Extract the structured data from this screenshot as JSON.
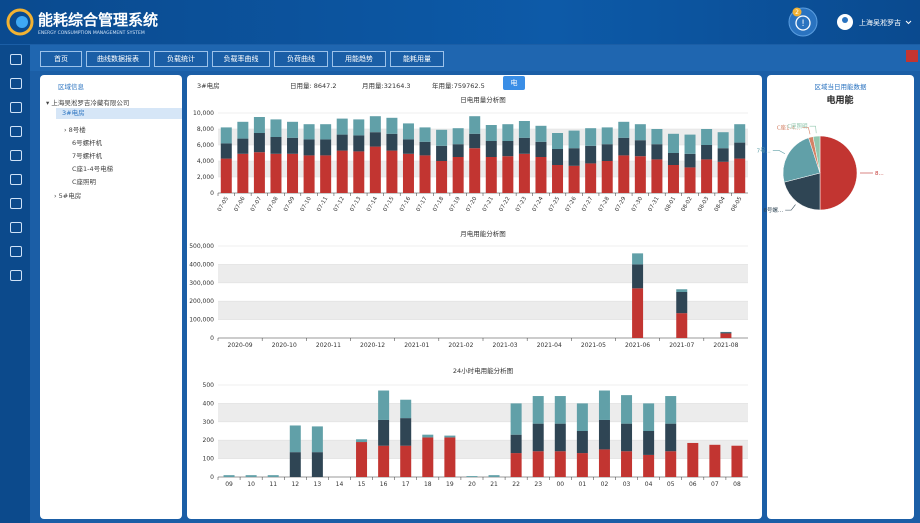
{
  "header": {
    "title": "能耗综合管理系统",
    "subtitle": "ENERGY CONSUMPTION MANAGEMENT SYSTEM",
    "badge": "2",
    "user": "上海吴淞罗吉"
  },
  "nav": [
    "首页",
    "曲线数据报表",
    "负载统计",
    "负载率曲线",
    "负荷曲线",
    "用能趋势",
    "能耗用量"
  ],
  "tree": {
    "title": "区域信息",
    "items": [
      "上海吴淞罗吉冷藏有限公司",
      "3#电房",
      "8号楼",
      "6号螺杆机",
      "7号螺杆机",
      "C座1-4号电梯",
      "C座照明",
      "5#电房"
    ]
  },
  "info": {
    "room": "3#电房",
    "day": "日用量: 8647.2",
    "month": "月用量:32164.3",
    "year": "年用量:759762.5",
    "button": "电"
  },
  "right_panel": {
    "title": "区域当日用能数据"
  },
  "chart_data": [
    {
      "type": "bar",
      "stacked": true,
      "title": "日电用量分析图",
      "grid": true,
      "categories": [
        "07-05",
        "07-06",
        "07-07",
        "07-08",
        "07-09",
        "07-10",
        "07-11",
        "07-12",
        "07-13",
        "07-14",
        "07-15",
        "07-16",
        "07-17",
        "07-18",
        "07-19",
        "07-20",
        "07-21",
        "07-22",
        "07-23",
        "07-24",
        "07-25",
        "07-26",
        "07-27",
        "07-28",
        "07-29",
        "07-30",
        "07-31",
        "08-01",
        "08-02",
        "08-03",
        "08-04",
        "08-05"
      ],
      "ylim": [
        0,
        10000
      ],
      "yticks": [
        0,
        {
          "value": 2000,
          "label": "2,000"
        },
        {
          "value": 4000,
          "label": "4,000"
        },
        {
          "value": 6000,
          "label": "6,000"
        },
        {
          "value": 8000,
          "label": "8,000"
        },
        {
          "value": 10000,
          "label": "10,000"
        }
      ],
      "series": [
        {
          "color": "#c23531",
          "values": [
            4300,
            4900,
            5100,
            4900,
            4900,
            4700,
            4700,
            5300,
            5200,
            5800,
            5300,
            4900,
            4700,
            4000,
            4500,
            5600,
            4500,
            4600,
            4900,
            4500,
            3500,
            3400,
            3700,
            4000,
            4700,
            4600,
            4200,
            3500,
            3200,
            4200,
            3900,
            4300
          ]
        },
        {
          "color": "#2f4554",
          "values": [
            1900,
            1900,
            2400,
            2100,
            2000,
            2000,
            2000,
            2000,
            2000,
            1800,
            2100,
            1800,
            1700,
            1900,
            1600,
            1800,
            2000,
            1900,
            2000,
            1900,
            2000,
            2200,
            2200,
            2100,
            2200,
            2000,
            1900,
            1500,
            1700,
            1800,
            1700,
            2000
          ]
        },
        {
          "color": "#61a0a8",
          "values": [
            2000,
            2100,
            2000,
            2200,
            2000,
            1900,
            1900,
            2000,
            2000,
            2000,
            2000,
            2000,
            1800,
            2000,
            2000,
            2200,
            2000,
            2100,
            2100,
            2000,
            2000,
            2200,
            2200,
            2100,
            2000,
            2000,
            1900,
            2400,
            2400,
            2000,
            2000,
            2300
          ]
        }
      ]
    },
    {
      "type": "bar",
      "stacked": true,
      "title": "月电用能分析图",
      "grid": true,
      "categories": [
        "2020-09",
        "2020-10",
        "2020-11",
        "2020-12",
        "2021-01",
        "2021-02",
        "2021-03",
        "2021-04",
        "2021-05",
        "2021-06",
        "2021-07",
        "2021-08"
      ],
      "ylim": [
        0,
        500000
      ],
      "yticks": [
        0,
        {
          "value": 100000,
          "label": "100,000"
        },
        {
          "value": 200000,
          "label": "200,000"
        },
        {
          "value": 300000,
          "label": "300,000"
        },
        {
          "value": 400000,
          "label": "400,000"
        },
        {
          "value": 500000,
          "label": "500,000"
        }
      ],
      "series": [
        {
          "color": "#c23531",
          "values": [
            0,
            0,
            0,
            0,
            0,
            0,
            0,
            0,
            0,
            270000,
            135000,
            25000
          ]
        },
        {
          "color": "#2f4554",
          "values": [
            0,
            0,
            0,
            0,
            0,
            0,
            0,
            0,
            0,
            130000,
            115000,
            5000
          ]
        },
        {
          "color": "#61a0a8",
          "values": [
            0,
            0,
            0,
            0,
            0,
            0,
            0,
            0,
            0,
            60000,
            15000,
            3000
          ]
        }
      ]
    },
    {
      "type": "bar",
      "stacked": true,
      "title": "24小时电用能分析图",
      "grid": true,
      "categories": [
        "09",
        "10",
        "11",
        "12",
        "13",
        "14",
        "15",
        "16",
        "17",
        "18",
        "19",
        "20",
        "21",
        "22",
        "23",
        "00",
        "01",
        "02",
        "03",
        "04",
        "05",
        "06",
        "07",
        "08"
      ],
      "ylim": [
        0,
        500
      ],
      "yticks": [
        0,
        100,
        200,
        300,
        400,
        500
      ],
      "series": [
        {
          "color": "#c23531",
          "values": [
            0,
            0,
            0,
            0,
            0,
            0,
            190,
            170,
            170,
            215,
            215,
            0,
            0,
            130,
            140,
            140,
            130,
            150,
            140,
            120,
            140,
            185,
            175,
            170
          ]
        },
        {
          "color": "#2f4554",
          "values": [
            0,
            0,
            0,
            135,
            135,
            0,
            0,
            140,
            150,
            0,
            0,
            0,
            0,
            100,
            150,
            150,
            120,
            160,
            150,
            130,
            150,
            0,
            0,
            0
          ]
        },
        {
          "color": "#61a0a8",
          "values": [
            10,
            10,
            10,
            145,
            140,
            0,
            15,
            160,
            100,
            15,
            10,
            5,
            10,
            170,
            150,
            150,
            150,
            160,
            155,
            150,
            150,
            0,
            0,
            0
          ]
        }
      ]
    },
    {
      "type": "pie",
      "title": "电用能",
      "labels": [
        "8...",
        "6号螺...",
        "7号...",
        "C座1-4...",
        "C座照明"
      ],
      "values": [
        50,
        21,
        24,
        2,
        3
      ],
      "colors": [
        "#c23531",
        "#2f4554",
        "#61a0a8",
        "#d48265",
        "#91c7ae"
      ]
    }
  ]
}
